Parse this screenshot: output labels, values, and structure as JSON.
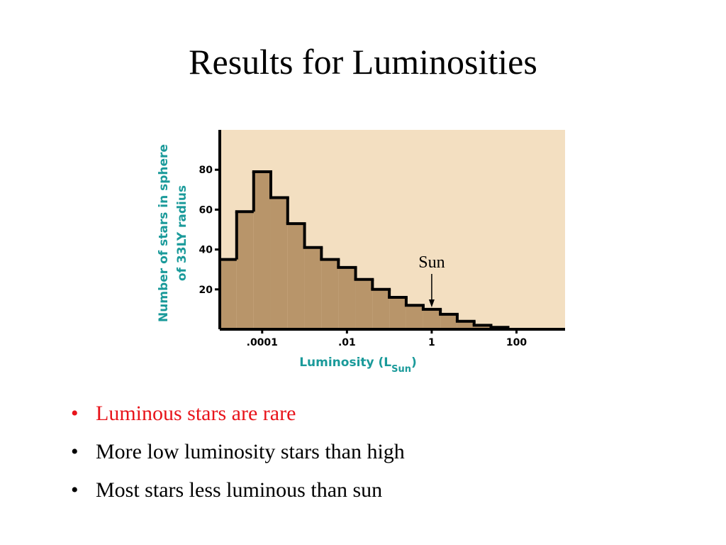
{
  "title": "Results for Luminosities",
  "bullets": [
    {
      "text": "Luminous stars are rare",
      "color": "#e8141b"
    },
    {
      "text": "More low luminosity stars than high",
      "color": "#000000"
    },
    {
      "text": "Most stars less luminous than sun",
      "color": "#000000"
    }
  ],
  "chart_data": {
    "type": "histogram",
    "ylabel": [
      "Number of stars in sphere",
      "of 33LY radius"
    ],
    "xlabel": [
      "Luminosity (L",
      "Sun",
      ")"
    ],
    "bins": [
      1e-05,
      2.5e-05,
      6.3e-05,
      0.00016,
      0.0004,
      0.001,
      0.0025,
      0.0063,
      0.016,
      0.04,
      0.1,
      0.25,
      0.63,
      1.6,
      4,
      10,
      25,
      63
    ],
    "values": [
      35,
      59,
      79,
      66,
      53,
      41,
      35,
      31,
      25,
      20,
      16,
      12,
      10,
      7.5,
      4,
      2,
      1
    ],
    "color": "#b8956a",
    "background": "#f3dfc1",
    "label_color": "#1a9a9a",
    "xscale": "log",
    "xlim": [
      1e-05,
      1400
    ],
    "xticks": [
      {
        "value": 0.0001,
        "label": ".0001"
      },
      {
        "value": 0.01,
        "label": ".01"
      },
      1,
      100
    ],
    "ylim": [
      0,
      100
    ],
    "yticks": [
      20,
      40,
      60,
      80
    ],
    "annotation": {
      "text": "Sun",
      "x": 1
    }
  }
}
